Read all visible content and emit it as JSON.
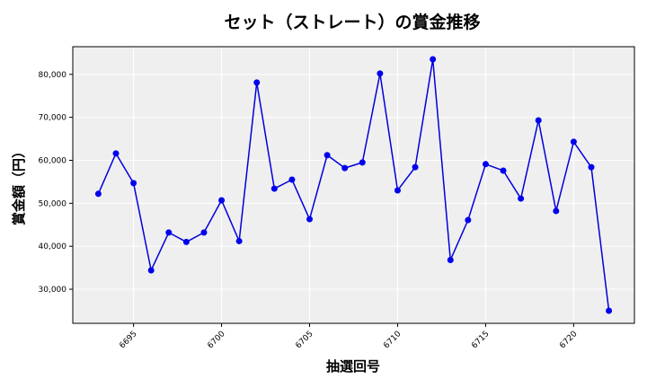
{
  "chart_data": {
    "type": "line",
    "title": "セット（ストレート）の賞金推移",
    "xlabel": "抽選回号",
    "ylabel": "賞金額（円）",
    "x": [
      6693,
      6694,
      6695,
      6696,
      6697,
      6698,
      6699,
      6700,
      6701,
      6702,
      6703,
      6704,
      6705,
      6706,
      6707,
      6708,
      6709,
      6710,
      6711,
      6712,
      6713,
      6714,
      6715,
      6716,
      6717,
      6718,
      6719,
      6720,
      6721,
      6722
    ],
    "values": [
      52200,
      61600,
      54700,
      34400,
      43200,
      41000,
      43200,
      50700,
      41200,
      78100,
      53400,
      55500,
      46300,
      61200,
      58200,
      59500,
      80200,
      53000,
      58400,
      83500,
      36800,
      46100,
      59100,
      57600,
      51100,
      69300,
      48200,
      64300,
      58400,
      25000
    ],
    "xticks": [
      "6695",
      "6700",
      "6705",
      "6710",
      "6715",
      "6720"
    ],
    "xtick_values": [
      6695,
      6700,
      6705,
      6710,
      6715,
      6720
    ],
    "yticks": [
      "30,000",
      "40,000",
      "50,000",
      "60,000",
      "70,000",
      "80,000"
    ],
    "ytick_values": [
      30000,
      40000,
      50000,
      60000,
      70000,
      80000
    ],
    "xlim": [
      6691.55,
      6723.45
    ],
    "ylim": [
      22070,
      86430
    ],
    "grid": true,
    "legend": "none",
    "colors": {
      "line": "#0000dd",
      "marker": "#0000ee",
      "plot_background": "#efefef",
      "grid": "#ffffff",
      "spine": "#000000"
    }
  }
}
